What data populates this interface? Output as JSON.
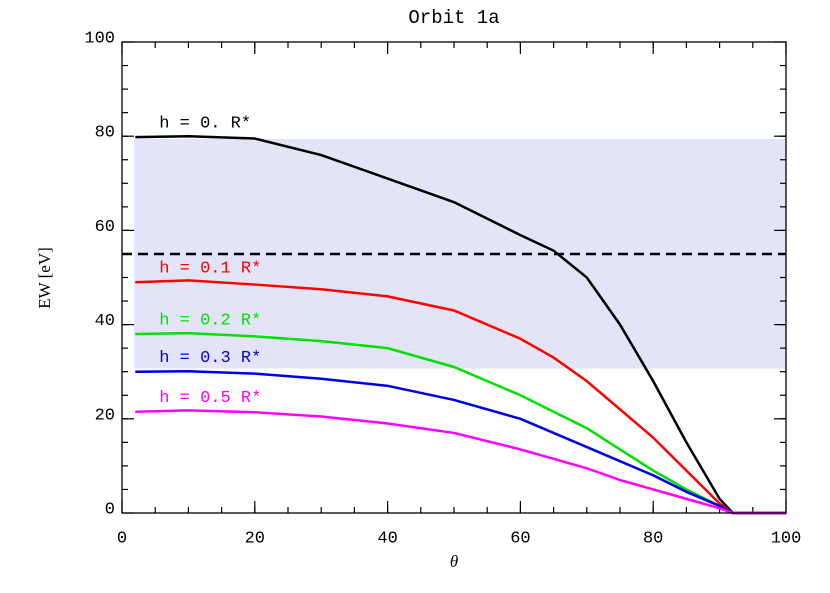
{
  "chart_data": {
    "type": "line",
    "title": "Orbit 1a",
    "x_label": "θ",
    "y_label": "EW [eV]",
    "x": [
      2,
      10,
      20,
      30,
      40,
      50,
      60,
      65,
      70,
      75,
      80,
      85,
      90,
      92,
      100
    ],
    "series": [
      {
        "name": "h = 0. R*",
        "color": "#000000",
        "values": [
          79.8,
          80,
          79.5,
          76,
          71,
          66,
          59,
          55.7,
          50,
          40,
          28,
          15,
          3,
          0,
          0
        ]
      },
      {
        "name": "h = 0.1 R*",
        "color": "#ff0000",
        "values": [
          49,
          49.4,
          48.5,
          47.5,
          46,
          43,
          37,
          33,
          28,
          22,
          16,
          9,
          2,
          0,
          0
        ]
      },
      {
        "name": "h = 0.2 R*",
        "color": "#00e000",
        "values": [
          38,
          38.2,
          37.5,
          36.5,
          35,
          31,
          25,
          21.5,
          18,
          13.5,
          9,
          5,
          1.5,
          0,
          0
        ]
      },
      {
        "name": "h = 0.3 R*",
        "color": "#0000e0",
        "values": [
          30,
          30.1,
          29.6,
          28.5,
          27,
          24,
          20,
          17,
          14,
          11,
          8,
          4.5,
          1.5,
          0,
          0
        ]
      },
      {
        "name": "h = 0.5 R*",
        "color": "#ff00ff",
        "values": [
          21.5,
          21.8,
          21.4,
          20.5,
          19,
          17,
          13.5,
          11.5,
          9.5,
          7,
          5,
          3,
          1,
          0,
          0
        ]
      }
    ],
    "band": [
      30.7,
      79.4
    ],
    "band_xlim": [
      1.8,
      100
    ],
    "band_color": "#e3e4f7",
    "hline": 55,
    "hline_color": "#000000",
    "xlim": [
      0,
      100
    ],
    "xticks": [
      0,
      20,
      40,
      60,
      80,
      100
    ],
    "ylim": [
      0,
      100
    ],
    "yticks": [
      0,
      20,
      40,
      60,
      80,
      100
    ]
  }
}
